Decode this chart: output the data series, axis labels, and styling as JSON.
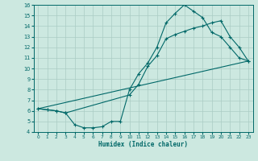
{
  "xlabel": "Humidex (Indice chaleur)",
  "bg_color": "#cce8e0",
  "line_color": "#006868",
  "grid_color": "#aaccc4",
  "xlim": [
    -0.5,
    23.5
  ],
  "ylim": [
    4,
    16
  ],
  "xticks": [
    0,
    1,
    2,
    3,
    4,
    5,
    6,
    7,
    8,
    9,
    10,
    11,
    12,
    13,
    14,
    15,
    16,
    17,
    18,
    19,
    20,
    21,
    22,
    23
  ],
  "yticks": [
    4,
    5,
    6,
    7,
    8,
    9,
    10,
    11,
    12,
    13,
    14,
    15,
    16
  ],
  "line1_x": [
    0,
    1,
    2,
    3,
    4,
    5,
    6,
    7,
    8,
    9,
    10,
    11,
    12,
    13,
    14,
    15,
    16,
    17,
    18,
    19,
    20,
    21,
    22,
    23
  ],
  "line1_y": [
    6.2,
    6.1,
    6.0,
    5.8,
    4.7,
    4.4,
    4.4,
    4.5,
    5.0,
    5.0,
    8.0,
    9.5,
    10.5,
    12.0,
    14.3,
    15.2,
    16.0,
    15.4,
    14.8,
    13.4,
    13.0,
    12.0,
    11.0,
    10.7
  ],
  "line2_x": [
    0,
    1,
    2,
    3,
    10,
    11,
    12,
    13,
    14,
    15,
    16,
    17,
    18,
    19,
    20,
    21,
    22,
    23
  ],
  "line2_y": [
    6.2,
    6.1,
    6.0,
    5.8,
    7.5,
    8.5,
    10.2,
    11.2,
    12.8,
    13.2,
    13.5,
    13.8,
    14.0,
    14.3,
    14.5,
    13.0,
    12.0,
    10.7
  ],
  "line3_x": [
    0,
    23
  ],
  "line3_y": [
    6.2,
    10.7
  ]
}
